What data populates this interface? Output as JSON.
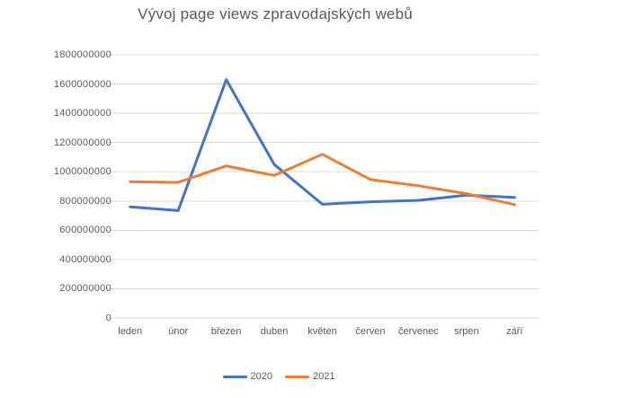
{
  "chart_data": {
    "type": "line",
    "title": "Vývoj page views zpravodajských webů",
    "xlabel": "",
    "ylabel": "",
    "categories": [
      "leden",
      "únor",
      "březen",
      "duben",
      "květen",
      "červen",
      "červenec",
      "srpen",
      "září"
    ],
    "series": [
      {
        "name": "2020",
        "color": "#4472C4",
        "values": [
          760000000,
          735000000,
          1630000000,
          1050000000,
          778000000,
          795000000,
          805000000,
          840000000,
          825000000
        ]
      },
      {
        "name": "2021",
        "color": "#ED7D31",
        "values": [
          932000000,
          928000000,
          1040000000,
          975000000,
          1120000000,
          947000000,
          905000000,
          850000000,
          775000000
        ]
      }
    ],
    "ylim": [
      0,
      1800000000
    ],
    "ytick_step": 200000000,
    "ytick_labels": [
      "0",
      "200000000",
      "400000000",
      "600000000",
      "800000000",
      "1000000000",
      "1200000000",
      "1400000000",
      "1600000000",
      "1800000000"
    ],
    "grid": true,
    "legend_position": "bottom",
    "colors": {
      "grid": "#D9D9D9",
      "text": "#595959",
      "background": "#FFFFFF"
    }
  }
}
